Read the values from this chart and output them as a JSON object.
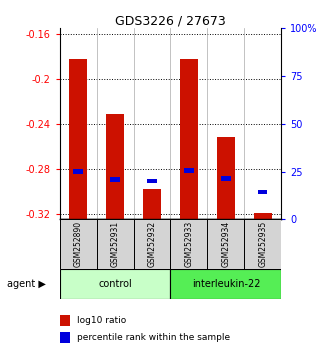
{
  "title": "GDS3226 / 27673",
  "samples": [
    "GSM252890",
    "GSM252931",
    "GSM252932",
    "GSM252933",
    "GSM252934",
    "GSM252935"
  ],
  "log10_ratio": [
    -0.182,
    -0.231,
    -0.298,
    -0.182,
    -0.252,
    -0.319
  ],
  "percentile_rank": [
    25.0,
    21.0,
    20.0,
    25.5,
    21.5,
    14.5
  ],
  "ylim_left": [
    -0.325,
    -0.155
  ],
  "ylim_right": [
    0,
    100
  ],
  "yticks_left": [
    -0.32,
    -0.28,
    -0.24,
    -0.2,
    -0.16
  ],
  "yticks_right": [
    0,
    25,
    50,
    75,
    100
  ],
  "bar_color": "#cc1100",
  "blue_color": "#0000dd",
  "bar_bottom": -0.325,
  "control_color": "#c8ffc8",
  "il22_color": "#55ee55",
  "legend_red": "log10 ratio",
  "legend_blue": "percentile rank within the sample",
  "agent_label": "agent"
}
